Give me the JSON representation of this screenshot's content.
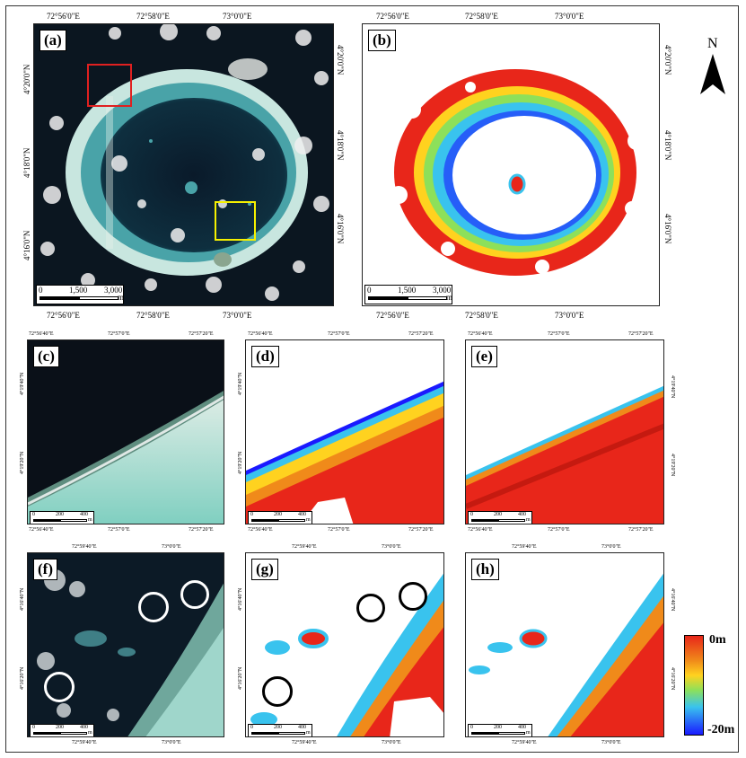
{
  "panels": {
    "a": "(a)",
    "b": "(b)",
    "c": "(c)",
    "d": "(d)",
    "e": "(e)",
    "f": "(f)",
    "g": "(g)",
    "h": "(h)"
  },
  "top_x_ticks": [
    "72°56'0\"E",
    "72°58'0\"E",
    "73°0'0\"E"
  ],
  "top_y_ticks": [
    "4°20'0\"N",
    "4°18'0\"N",
    "4°16'0\"N"
  ],
  "scale_top": {
    "nums": [
      "0",
      "1,500",
      "3,000"
    ],
    "unit": "m"
  },
  "mid_x_ticks": [
    "72°56'40\"E",
    "72°57'0\"E",
    "72°57'20\"E"
  ],
  "mid_y_ticks": [
    "4°19'40\"N",
    "4°19'20\"N"
  ],
  "bot_x_ticks": [
    "72°59'40\"E",
    "73°0'0\"E"
  ],
  "bot_y_ticks": [
    "4°16'40\"N",
    "4°16'20\"N"
  ],
  "scale_small": {
    "nums": [
      "0",
      "200",
      "400"
    ],
    "unit": "m"
  },
  "north": "N",
  "legend": {
    "max": "0m",
    "min": "-20m"
  },
  "colors": {
    "shallow": "#e8261a",
    "mid": "#ffd21f",
    "green": "#8de05a",
    "cyan": "#39c3ee",
    "deep": "#1a1aff",
    "water": "#0b1620",
    "reef": "#7fcfc0",
    "red_box": "#e02020",
    "yellow_box": "#f5f000"
  }
}
